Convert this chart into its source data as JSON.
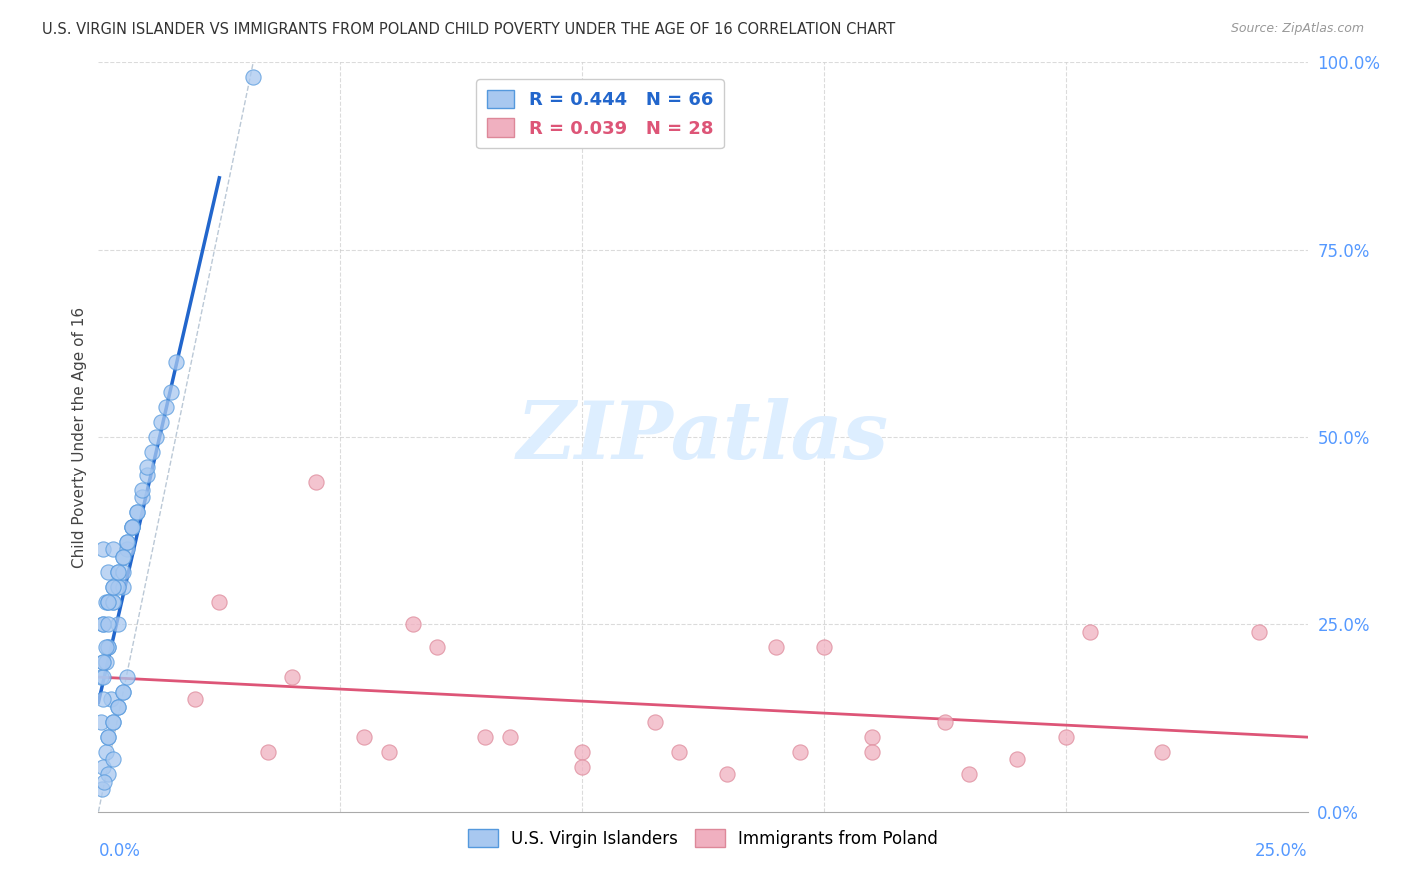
{
  "title": "U.S. VIRGIN ISLANDER VS IMMIGRANTS FROM POLAND CHILD POVERTY UNDER THE AGE OF 16 CORRELATION CHART",
  "source": "Source: ZipAtlas.com",
  "ylabel": "Child Poverty Under the Age of 16",
  "legend_label_blue": "U.S. Virgin Islanders",
  "legend_label_pink": "Immigrants from Poland",
  "R_blue": 0.444,
  "N_blue": 66,
  "R_pink": 0.039,
  "N_pink": 28,
  "blue_scatter_color": "#a8c8f0",
  "blue_edge_color": "#5599dd",
  "pink_scatter_color": "#f0b0c0",
  "pink_edge_color": "#dd8899",
  "blue_line_color": "#2266cc",
  "pink_line_color": "#dd5577",
  "dash_line_color": "#aabbcc",
  "grid_color": "#cccccc",
  "tick_color": "#5599ff",
  "watermark_color": "#ddeeff",
  "xmin": 0.0,
  "xmax": 0.25,
  "ymin": 0.0,
  "ymax": 1.0,
  "blue_x": [
    0.001,
    0.0005,
    0.002,
    0.001,
    0.0015,
    0.003,
    0.002,
    0.001,
    0.0025,
    0.0005,
    0.004,
    0.003,
    0.002,
    0.0015,
    0.001,
    0.005,
    0.004,
    0.003,
    0.002,
    0.001,
    0.001,
    0.006,
    0.005,
    0.004,
    0.003,
    0.002,
    0.0015,
    0.001,
    0.007,
    0.006,
    0.005,
    0.004,
    0.003,
    0.002,
    0.008,
    0.007,
    0.006,
    0.005,
    0.009,
    0.008,
    0.007,
    0.01,
    0.009,
    0.011,
    0.01,
    0.012,
    0.013,
    0.014,
    0.015,
    0.002,
    0.0015,
    0.001,
    0.003,
    0.002,
    0.004,
    0.003,
    0.005,
    0.004,
    0.006,
    0.005,
    0.016,
    0.002,
    0.003,
    0.0008,
    0.0012,
    0.032
  ],
  "blue_y": [
    0.2,
    0.18,
    0.22,
    0.25,
    0.28,
    0.3,
    0.32,
    0.35,
    0.15,
    0.12,
    0.25,
    0.28,
    0.22,
    0.2,
    0.18,
    0.3,
    0.32,
    0.35,
    0.28,
    0.25,
    0.15,
    0.35,
    0.32,
    0.3,
    0.28,
    0.25,
    0.22,
    0.2,
    0.38,
    0.36,
    0.34,
    0.32,
    0.3,
    0.28,
    0.4,
    0.38,
    0.36,
    0.34,
    0.42,
    0.4,
    0.38,
    0.45,
    0.43,
    0.48,
    0.46,
    0.5,
    0.52,
    0.54,
    0.56,
    0.1,
    0.08,
    0.06,
    0.12,
    0.1,
    0.14,
    0.12,
    0.16,
    0.14,
    0.18,
    0.16,
    0.6,
    0.05,
    0.07,
    0.03,
    0.04,
    0.98
  ],
  "pink_x": [
    0.02,
    0.035,
    0.055,
    0.07,
    0.085,
    0.1,
    0.115,
    0.13,
    0.145,
    0.16,
    0.175,
    0.19,
    0.205,
    0.04,
    0.06,
    0.08,
    0.1,
    0.12,
    0.14,
    0.16,
    0.18,
    0.2,
    0.22,
    0.025,
    0.045,
    0.065,
    0.15,
    0.24
  ],
  "pink_y": [
    0.15,
    0.08,
    0.1,
    0.22,
    0.1,
    0.08,
    0.12,
    0.05,
    0.08,
    0.1,
    0.12,
    0.07,
    0.24,
    0.18,
    0.08,
    0.1,
    0.06,
    0.08,
    0.22,
    0.08,
    0.05,
    0.1,
    0.08,
    0.28,
    0.44,
    0.25,
    0.22,
    0.24
  ]
}
